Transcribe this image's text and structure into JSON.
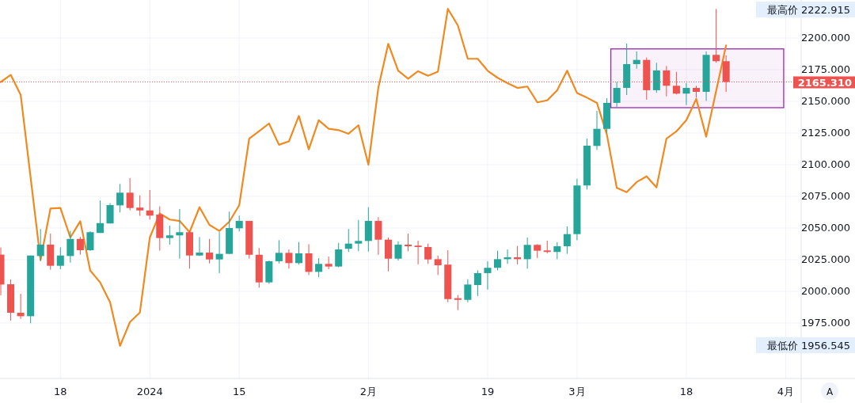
{
  "chart_data": {
    "type": "candlestick",
    "categories": [
      null,
      null,
      null,
      null,
      null,
      null,
      "18",
      null,
      null,
      null,
      null,
      null,
      null,
      null,
      null,
      "2024",
      null,
      null,
      null,
      null,
      null,
      null,
      null,
      null,
      "15",
      null,
      null,
      null,
      null,
      null,
      null,
      null,
      null,
      null,
      null,
      null,
      null,
      "2月",
      null,
      null,
      null,
      null,
      null,
      null,
      null,
      null,
      null,
      null,
      null,
      "19",
      null,
      null,
      null,
      null,
      null,
      null,
      null,
      null,
      "3月",
      null,
      null,
      null,
      null,
      null,
      null,
      null,
      null,
      null,
      null,
      "18",
      null,
      null,
      null,
      null,
      null,
      null,
      null,
      null,
      null,
      "4月"
    ],
    "ohlc": [
      [
        2029.0,
        2034.6,
        1996.9,
        2005.4
      ],
      [
        2005.6,
        2009.4,
        1976.9,
        1983.1
      ],
      [
        1983.1,
        1998.1,
        1978.3,
        1980.4
      ],
      [
        1980.4,
        2028.3,
        1974.8,
        2028.3
      ],
      [
        2027.9,
        2049.2,
        2023.8,
        2036.9
      ],
      [
        2036.9,
        2045.6,
        2017.1,
        2020.2
      ],
      [
        2020.2,
        2034.8,
        2017.5,
        2028.3
      ],
      [
        2027.9,
        2047.7,
        2022.7,
        2041.4
      ],
      [
        2041.4,
        2043.0,
        2029.0,
        2032.5
      ],
      [
        2032.5,
        2047.5,
        2031.9,
        2046.7
      ],
      [
        2046.1,
        2071.7,
        2046.1,
        2053.9
      ],
      [
        2053.6,
        2069.6,
        2053.6,
        2068.1
      ],
      [
        2067.9,
        2084.8,
        2062.3,
        2077.9
      ],
      [
        2077.9,
        2089.4,
        2064.0,
        2065.8
      ],
      [
        2066.1,
        2075.8,
        2059.6,
        2063.9
      ],
      [
        2063.9,
        2080.0,
        2056.7,
        2059.8
      ],
      [
        2060.6,
        2067.1,
        2032.1,
        2042.1
      ],
      [
        2042.1,
        2051.9,
        2036.9,
        2044.2
      ],
      [
        2044.2,
        2065.0,
        2025.8,
        2046.7
      ],
      [
        2046.7,
        2047.7,
        2017.9,
        2028.3
      ],
      [
        2028.3,
        2042.9,
        2027.9,
        2030.6
      ],
      [
        2030.6,
        2041.4,
        2022.1,
        2025.2
      ],
      [
        2025.2,
        2046.7,
        2014.4,
        2029.6
      ],
      [
        2029.6,
        2062.9,
        2029.4,
        2050.0
      ],
      [
        2049.8,
        2059.8,
        2047.3,
        2055.6
      ],
      [
        2055.6,
        2055.6,
        2025.8,
        2028.9
      ],
      [
        2028.9,
        2034.2,
        2002.9,
        2007.1
      ],
      [
        2007.1,
        2024.2,
        2006.0,
        2023.8
      ],
      [
        2023.8,
        2040.4,
        2022.1,
        2030.4
      ],
      [
        2030.4,
        2033.1,
        2017.9,
        2022.3
      ],
      [
        2022.3,
        2038.8,
        2021.1,
        2030.0
      ],
      [
        2030.0,
        2037.3,
        2012.9,
        2015.4
      ],
      [
        2015.4,
        2026.3,
        2011.3,
        2021.7
      ],
      [
        2021.7,
        2027.5,
        2017.5,
        2019.6
      ],
      [
        2019.6,
        2038.3,
        2019.0,
        2033.1
      ],
      [
        2033.6,
        2049.2,
        2031.1,
        2037.7
      ],
      [
        2037.7,
        2056.4,
        2031.7,
        2039.8
      ],
      [
        2039.8,
        2066.4,
        2031.4,
        2055.6
      ],
      [
        2055.6,
        2058.6,
        2028.9,
        2040.8
      ],
      [
        2040.8,
        2042.5,
        2015.8,
        2025.8
      ],
      [
        2025.8,
        2039.4,
        2024.4,
        2036.9
      ],
      [
        2036.9,
        2045.6,
        2031.7,
        2035.6
      ],
      [
        2036.1,
        2040.0,
        2021.3,
        2035.0
      ],
      [
        2035.0,
        2037.7,
        2021.7,
        2025.2
      ],
      [
        2025.4,
        2028.3,
        2012.9,
        2020.6
      ],
      [
        2021.1,
        2032.5,
        1991.4,
        1993.9
      ],
      [
        1994.6,
        1997.1,
        1985.2,
        1993.3
      ],
      [
        1993.3,
        2009.6,
        1991.4,
        2005.4
      ],
      [
        2005.0,
        2016.6,
        1996.3,
        2014.4
      ],
      [
        2014.4,
        2023.8,
        2001.3,
        2018.6
      ],
      [
        2018.6,
        2032.1,
        2016.6,
        2025.4
      ],
      [
        2025.4,
        2033.1,
        2021.7,
        2026.9
      ],
      [
        2026.9,
        2035.8,
        2021.3,
        2025.4
      ],
      [
        2025.4,
        2042.5,
        2017.9,
        2036.7
      ],
      [
        2036.7,
        2037.3,
        2026.3,
        2032.1
      ],
      [
        2032.3,
        2040.0,
        2030.0,
        2031.1
      ],
      [
        2031.1,
        2038.9,
        2025.4,
        2035.6
      ],
      [
        2035.6,
        2051.3,
        2029.6,
        2045.2
      ],
      [
        2045.2,
        2088.9,
        2040.4,
        2083.6
      ],
      [
        2083.6,
        2120.6,
        2080.4,
        2115.0
      ],
      [
        2114.8,
        2142.5,
        2111.7,
        2128.3
      ],
      [
        2128.3,
        2152.5,
        2124.8,
        2148.8
      ],
      [
        2148.8,
        2165.4,
        2145.6,
        2160.6
      ],
      [
        2160.6,
        2195.6,
        2155.0,
        2179.4
      ],
      [
        2179.4,
        2189.4,
        2175.8,
        2182.7
      ],
      [
        2182.7,
        2184.6,
        2151.3,
        2158.8
      ],
      [
        2158.8,
        2180.4,
        2156.7,
        2174.4
      ],
      [
        2174.4,
        2177.9,
        2153.9,
        2162.3
      ],
      [
        2162.3,
        2173.3,
        2155.5,
        2156.1
      ],
      [
        2156.1,
        2164.4,
        2147.1,
        2160.6
      ],
      [
        2160.6,
        2162.3,
        2152.9,
        2157.5
      ],
      [
        2157.5,
        2189.4,
        2150.4,
        2186.7
      ],
      [
        2186.7,
        2222.915,
        2180.5,
        2181.7
      ],
      [
        2181.7,
        2186.3,
        2157.5,
        2165.31
      ],
      null,
      null,
      null,
      null,
      null,
      null
    ],
    "series": [
      {
        "type": "line",
        "color": "#f0891f",
        "values": [
          2165.3,
          2170.9,
          2155.2,
          2090,
          2024.8,
          2065.4,
          2065.8,
          2042.5,
          2055.4,
          2016.4,
          2007.1,
          1991.4,
          1957,
          1975.8,
          1983.3,
          2042.5,
          2061.5,
          2056.7,
          2055.6,
          2046.7,
          2066.4,
          2052.5,
          2047.7,
          2055,
          2068,
          2120.6,
          2126.5,
          2132.5,
          2115.7,
          2118.4,
          2138.5,
          2112.1,
          2135.1,
          2128.4,
          2127.3,
          2124.4,
          2131.1,
          2100,
          2160.8,
          2195.4,
          2174.2,
          2167.9,
          2173.8,
          2170.2,
          2173.5,
          2223,
          2210,
          2183.6,
          2183.6,
          2174.2,
          2168.6,
          2164.4,
          2160.6,
          2161.7,
          2149.2,
          2150.8,
          2158.8,
          2174.2,
          2156.5,
          2152.9,
          2148.8,
          2123.8,
          2081.7,
          2078.3,
          2086.3,
          2090.8,
          2082.1,
          2120.6,
          2126.3,
          2135.2,
          2151.9,
          2122.1,
          2158.1,
          2194.2,
          null,
          null,
          null,
          null,
          null,
          null
        ]
      }
    ],
    "ylim": [
      1931.25,
      2230
    ],
    "yticks": [
      {
        "value": 1975,
        "label": "1975.000"
      },
      {
        "value": 2000,
        "label": "2000.000"
      },
      {
        "value": 2025,
        "label": "2025.000"
      },
      {
        "value": 2050,
        "label": "2050.000"
      },
      {
        "value": 2075,
        "label": "2075.000"
      },
      {
        "value": 2100,
        "label": "2100.000"
      },
      {
        "value": 2125,
        "label": "2125.000"
      },
      {
        "value": 2150,
        "label": "2150.000"
      },
      {
        "value": 2175,
        "label": "2175.000"
      },
      {
        "value": 2200,
        "label": "2200.000"
      }
    ],
    "grid": true,
    "ref_lines": [
      {
        "axis": "y",
        "value": 2165.31,
        "label": "2165.310",
        "color": "#ef5350",
        "line_style": "dotted"
      }
    ],
    "bands": [
      {
        "axis": "y",
        "from": 2145,
        "to": 2191.4,
        "color": "#9c27b0"
      }
    ],
    "annotations": [
      "最高价 2222.915",
      "最低价 1956.545",
      "A"
    ]
  }
}
